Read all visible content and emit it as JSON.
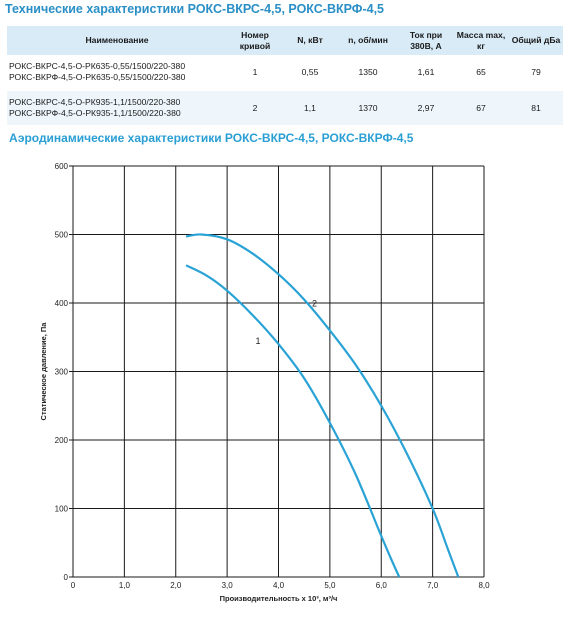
{
  "title_specs": "Технические характеристики РОКС-ВКРС-4,5, РОКС-ВКРФ-4,5",
  "table": {
    "headers": [
      "Наименование",
      "Номер кривой",
      "N, кВт",
      "n, об/мин",
      "Ток при 380В, А",
      "Масса max, кг",
      "Общий дБа"
    ],
    "rows": [
      {
        "names": [
          "РОКС-ВКРС-4,5-О-РК635-0,55/1500/220-380",
          "РОКС-ВКРФ-4,5-О-РК635-0,55/1500/220-380"
        ],
        "curve": "1",
        "power": "0,55",
        "rpm": "1350",
        "current": "1,61",
        "mass": "65",
        "noise": "79"
      },
      {
        "names": [
          "РОКС-ВКРС-4,5-О-РК935-1,1/1500/220-380",
          "РОКС-ВКРФ-4,5-О-РК935-1,1/1500/220-380"
        ],
        "curve": "2",
        "power": "1,1",
        "rpm": "1370",
        "current": "2,97",
        "mass": "67",
        "noise": "81"
      }
    ]
  },
  "title_aero": "Аэродинамические характеристики РОКС-ВКРС-4,5, РОКС-ВКРФ-4,5",
  "colors": {
    "curve": "#29a3d6",
    "header_bg": "#d8ebf7",
    "title": "#2a8fc6"
  },
  "chart_data": {
    "type": "line",
    "xlabel": "Производительность х 10³, м³/ч",
    "ylabel": "Статическое давление, Па",
    "xlim": [
      0,
      8
    ],
    "ylim": [
      0,
      600
    ],
    "x_ticks": [
      "0",
      "1,0",
      "2,0",
      "3,0",
      "4,0",
      "5,0",
      "6,0",
      "7,0",
      "8,0"
    ],
    "y_ticks": [
      "0",
      "100",
      "200",
      "300",
      "400",
      "500",
      "600"
    ],
    "grid": true,
    "series": [
      {
        "name": "1",
        "x": [
          2.2,
          2.6,
          3.0,
          3.5,
          4.0,
          4.5,
          5.0,
          5.5,
          6.0,
          6.2,
          6.35
        ],
        "y": [
          455,
          440,
          418,
          382,
          340,
          290,
          225,
          150,
          60,
          25,
          0
        ]
      },
      {
        "name": "2",
        "x": [
          2.2,
          2.5,
          3.0,
          3.5,
          4.0,
          4.5,
          5.0,
          5.5,
          6.0,
          6.5,
          7.0,
          7.3,
          7.5
        ],
        "y": [
          497,
          500,
          493,
          472,
          442,
          405,
          360,
          310,
          250,
          180,
          100,
          40,
          0
        ]
      }
    ]
  }
}
